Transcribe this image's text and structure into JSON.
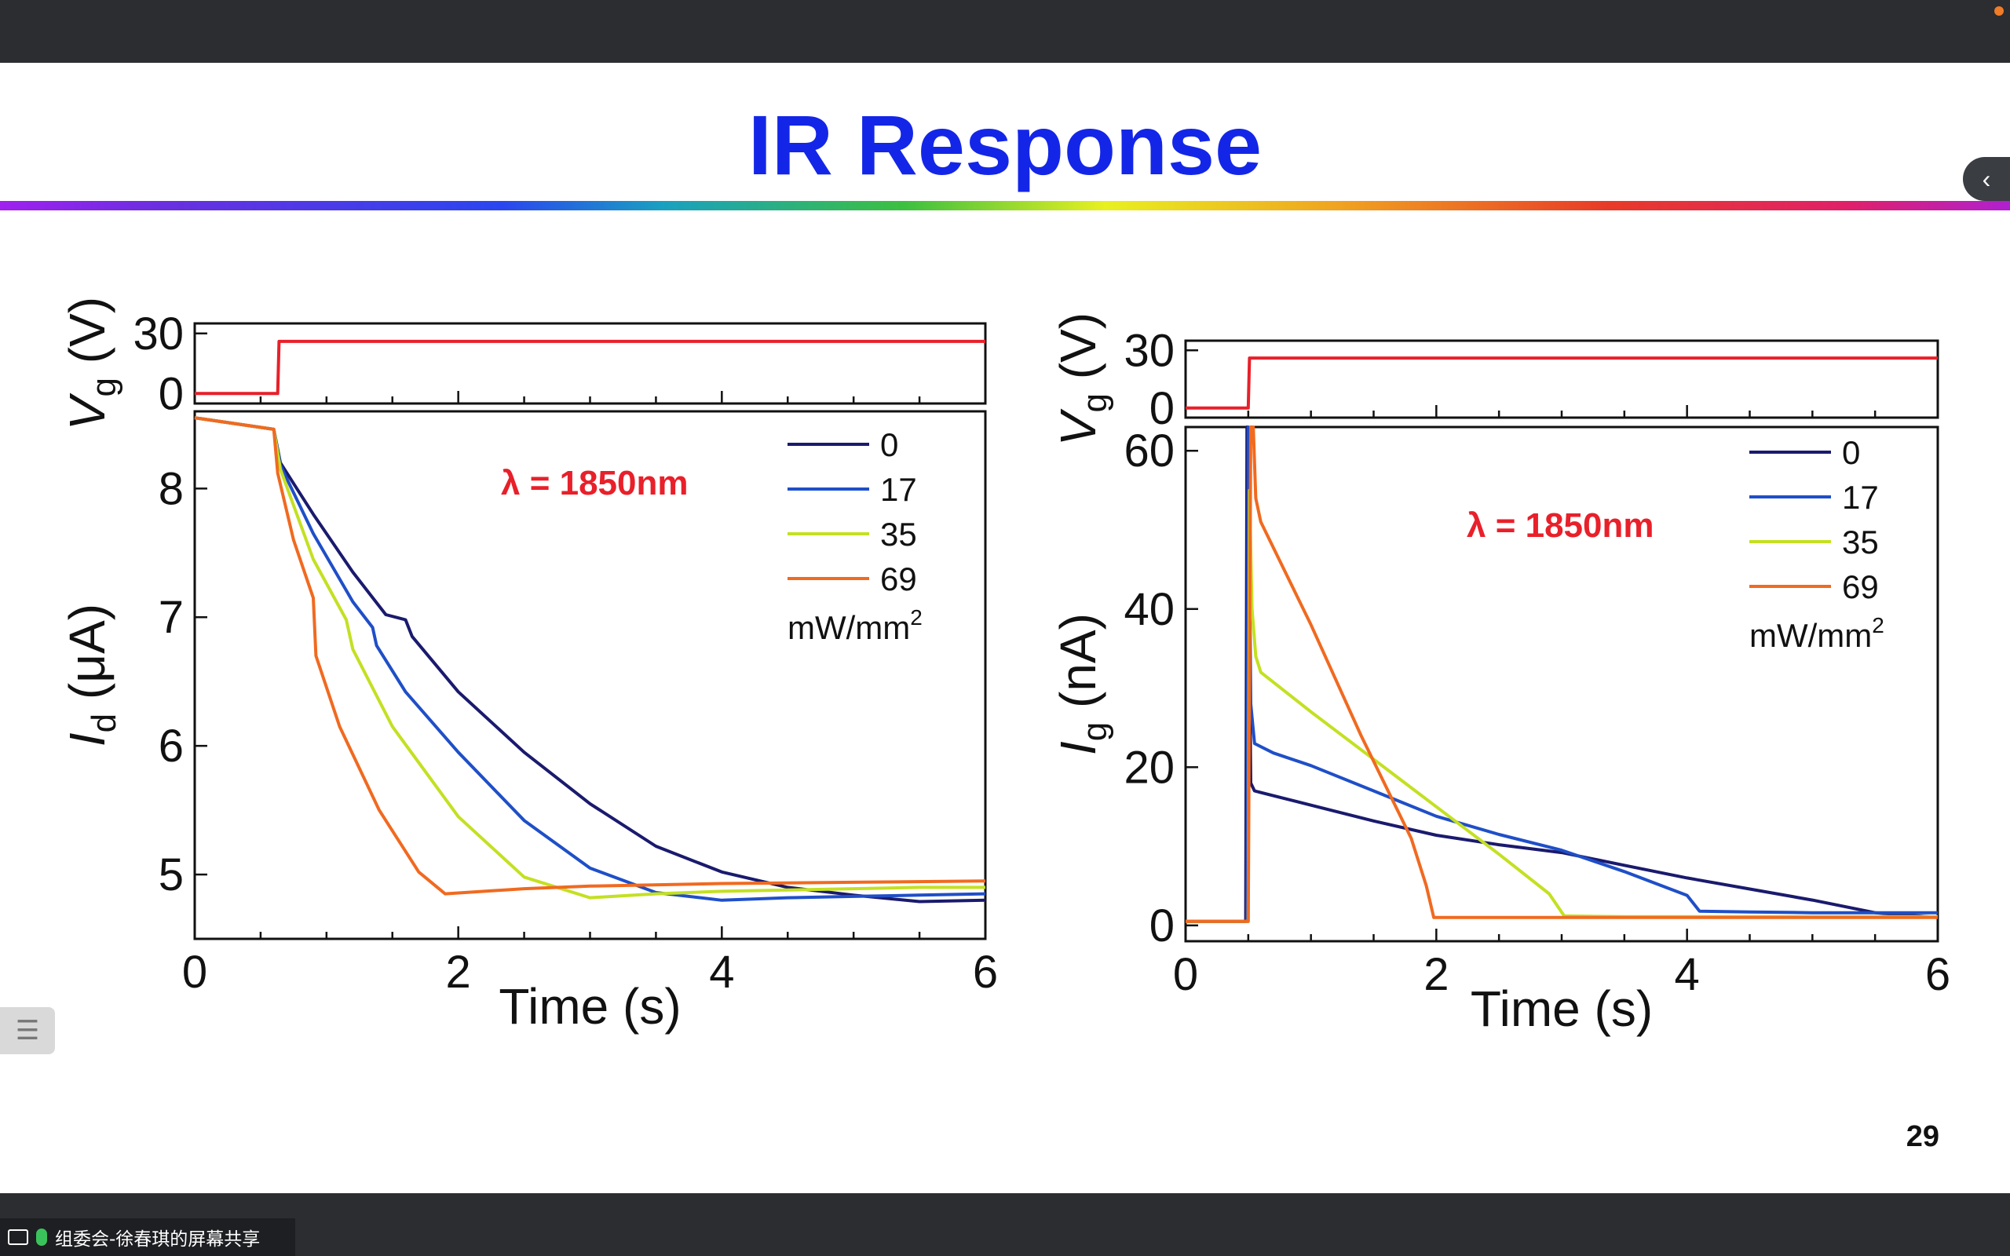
{
  "window": {
    "share_label": "组委会-徐春琪的屏幕共享"
  },
  "slide": {
    "title": "IR Response",
    "page_number": "29",
    "title_color": "#1326e8"
  },
  "ui": {
    "collapse_icon": "chevron-left-icon",
    "menu_icon": "list-icon"
  },
  "chart_data": [
    {
      "type": "line",
      "panel": "left-top",
      "ylabel_var": "V",
      "ylabel_sub": "g",
      "ylabel_unit": " (V)",
      "xlim": [
        0,
        6
      ],
      "ylim": [
        -5,
        35
      ],
      "yticks": [
        "30",
        "0"
      ],
      "series": [
        {
          "color": "#e8202a",
          "x": [
            0,
            0.63,
            0.64,
            6
          ],
          "y": [
            0,
            0,
            26,
            26
          ]
        }
      ]
    },
    {
      "type": "line",
      "panel": "left-bottom",
      "ylabel_var": "I",
      "ylabel_sub": "d",
      "ylabel_unit": " (μA)",
      "xlabel": "Time (s)",
      "xlim": [
        0,
        6
      ],
      "ylim": [
        4.5,
        8.6
      ],
      "xticks": [
        "0",
        "2",
        "4",
        "6"
      ],
      "yticks": [
        "8",
        "7",
        "6",
        "5"
      ],
      "annotation": "λ = 1850nm",
      "legend_unit": "mW/mm",
      "legend_unit_sup": "2",
      "series": [
        {
          "name": "0",
          "color": "#1a1a6e",
          "x": [
            0,
            0.6,
            0.65,
            0.9,
            1.2,
            1.45,
            1.6,
            1.65,
            2.0,
            2.5,
            3.0,
            3.5,
            4.0,
            4.5,
            5.0,
            5.5,
            6.0
          ],
          "y": [
            8.55,
            8.46,
            8.2,
            7.8,
            7.35,
            7.02,
            6.98,
            6.85,
            6.42,
            5.95,
            5.55,
            5.22,
            5.02,
            4.9,
            4.84,
            4.79,
            4.8
          ]
        },
        {
          "name": "17",
          "color": "#1f4fc8",
          "x": [
            0,
            0.6,
            0.65,
            0.9,
            1.2,
            1.35,
            1.38,
            1.6,
            2.0,
            2.5,
            3.0,
            3.5,
            4.0,
            4.5,
            5.0,
            5.5,
            6.0
          ],
          "y": [
            8.55,
            8.46,
            8.18,
            7.65,
            7.12,
            6.92,
            6.78,
            6.42,
            5.95,
            5.42,
            5.05,
            4.86,
            4.8,
            4.82,
            4.83,
            4.84,
            4.85
          ]
        },
        {
          "name": "35",
          "color": "#c4e022",
          "x": [
            0,
            0.6,
            0.65,
            0.9,
            1.15,
            1.2,
            1.5,
            2.0,
            2.5,
            3.0,
            3.5,
            4.0,
            4.5,
            5.0,
            5.5,
            6.0
          ],
          "y": [
            8.55,
            8.46,
            8.15,
            7.45,
            6.98,
            6.75,
            6.15,
            5.45,
            4.98,
            4.82,
            4.85,
            4.87,
            4.88,
            4.89,
            4.9,
            4.9
          ]
        },
        {
          "name": "69",
          "color": "#f06a20",
          "x": [
            0,
            0.6,
            0.63,
            0.75,
            0.9,
            0.92,
            1.1,
            1.4,
            1.7,
            1.9,
            2.5,
            3.0,
            4.0,
            5.0,
            6.0
          ],
          "y": [
            8.55,
            8.46,
            8.12,
            7.6,
            7.15,
            6.7,
            6.15,
            5.5,
            5.02,
            4.85,
            4.89,
            4.91,
            4.93,
            4.94,
            4.95
          ]
        }
      ]
    },
    {
      "type": "line",
      "panel": "right-top",
      "ylabel_var": "V",
      "ylabel_sub": "g",
      "ylabel_unit": " (V)",
      "xlim": [
        0,
        6
      ],
      "ylim": [
        -5,
        35
      ],
      "yticks": [
        "30",
        "0"
      ],
      "series": [
        {
          "color": "#e8202a",
          "x": [
            0,
            0.5,
            0.51,
            6
          ],
          "y": [
            0,
            0,
            26,
            26
          ]
        }
      ]
    },
    {
      "type": "line",
      "panel": "right-bottom",
      "ylabel_var": "I",
      "ylabel_sub": "g",
      "ylabel_unit": " (nA)",
      "xlabel": "Time (s)",
      "xlim": [
        0,
        6
      ],
      "ylim": [
        -2,
        63
      ],
      "xticks": [
        "0",
        "2",
        "4",
        "6"
      ],
      "yticks": [
        "60",
        "40",
        "20",
        "0"
      ],
      "annotation": "λ = 1850nm",
      "legend_unit": "mW/mm",
      "legend_unit_sup": "2",
      "series": [
        {
          "name": "0",
          "color": "#1a1a6e",
          "x": [
            0,
            0.48,
            0.49,
            0.52,
            0.55,
            0.6,
            1.0,
            1.5,
            2.0,
            2.5,
            3.0,
            3.5,
            4.0,
            4.5,
            5.0,
            5.5,
            6.0
          ],
          "y": [
            0.5,
            0.5,
            63,
            18,
            17,
            16.8,
            15.2,
            13.2,
            11.4,
            10.2,
            9.2,
            7.6,
            6.0,
            4.6,
            3.2,
            1.6,
            1.0
          ]
        },
        {
          "name": "17",
          "color": "#1f4fc8",
          "x": [
            0,
            0.49,
            0.5,
            0.52,
            0.55,
            0.7,
            1.0,
            1.5,
            2.0,
            2.5,
            3.0,
            3.5,
            4.0,
            4.1,
            4.5,
            5.0,
            5.5,
            6.0
          ],
          "y": [
            0.5,
            0.5,
            63,
            28,
            23,
            21.8,
            20.2,
            17.0,
            13.8,
            11.5,
            9.5,
            6.8,
            3.8,
            1.8,
            1.7,
            1.6,
            1.6,
            1.6
          ]
        },
        {
          "name": "35",
          "color": "#c4e022",
          "x": [
            0,
            0.5,
            0.51,
            0.53,
            0.56,
            0.6,
            1.0,
            1.5,
            2.0,
            2.5,
            2.9,
            3.02,
            3.5,
            4.0,
            5.0,
            6.0
          ],
          "y": [
            0.5,
            0.5,
            55,
            40,
            34,
            32,
            27,
            21,
            15,
            9,
            4,
            1.2,
            1.1,
            1.1,
            1.1,
            1.1
          ]
        },
        {
          "name": "69",
          "color": "#f06a20",
          "x": [
            0,
            0.5,
            0.52,
            0.54,
            0.56,
            0.6,
            1.0,
            1.4,
            1.8,
            1.92,
            1.98,
            2.5,
            3.0,
            4.0,
            5.0,
            6.0
          ],
          "y": [
            0.5,
            0.5,
            63,
            63,
            54,
            51,
            38,
            24,
            11,
            5,
            1.0,
            1.0,
            1.0,
            1.0,
            1.0,
            1.0
          ]
        }
      ]
    }
  ]
}
